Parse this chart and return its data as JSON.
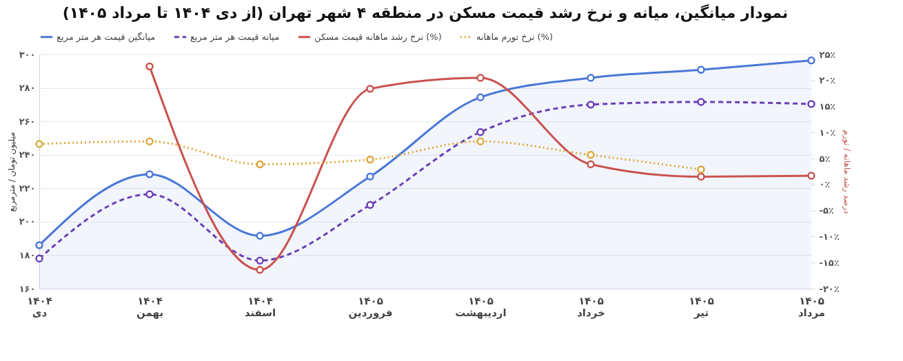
{
  "chart_data": {
    "type": "line",
    "title": "نمودار میانگین، میانه و نرخ رشد قیمت مسکن در منطقه ۴ شهر تهران (از دی ۱۴۰۴ تا مرداد ۱۴۰۵)",
    "ylabel": "میلیون تومان / مترمربع",
    "y2label": "درصد رشد ماهانه / تورم",
    "categories": [
      "۱۴۰۴\nدی",
      "۱۴۰۴\nبهمن",
      "۱۴۰۴\nاسفند",
      "۱۴۰۵\nفروردین",
      "۱۴۰۵\nاردیبهشت",
      "۱۴۰۵\nخرداد",
      "۱۴۰۵\nتیر",
      "۱۴۰۵\nمرداد"
    ],
    "series": [
      {
        "name": "میانگین قیمت هر متر مربع",
        "type": "area",
        "color": "#4a77d6",
        "line_style": "solid",
        "values": [
          186,
          228.4,
          191.6,
          227,
          274.4,
          286,
          290.8,
          296.4
        ]
      },
      {
        "name": "میانه قیمت هر متر مربع",
        "type": "line",
        "color": "#6a3fb5",
        "line_style": "dashed",
        "values": [
          178,
          216.4,
          176.8,
          210,
          253.6,
          270,
          271.6,
          270.4
        ]
      },
      {
        "name": "نرخ رشد ماهانه قیمت مسکن (%)",
        "type": "line",
        "axis": "y2",
        "color": "#c9524e",
        "line_style": "solid",
        "values": [
          null,
          22.7,
          -16.4,
          18.4,
          20.5,
          3.9,
          1.5,
          1.7
        ]
      },
      {
        "name": "نرخ تورم ماهانه (%)",
        "type": "line",
        "axis": "y2",
        "color": "#dba83a",
        "line_style": "dotted",
        "values": [
          7.8,
          8.3,
          3.9,
          4.8,
          8.3,
          5.7,
          2.9,
          null
        ]
      }
    ],
    "ylim": [
      160,
      300
    ],
    "yticks": [
      {
        "value": 160,
        "label": "۱۶۰"
      },
      {
        "value": 180,
        "label": "۱۸۰"
      },
      {
        "value": 200,
        "label": "۲۰۰"
      },
      {
        "value": 220,
        "label": "۲۲۰"
      },
      {
        "value": 240,
        "label": "۲۴۰"
      },
      {
        "value": 260,
        "label": "۲۶۰"
      },
      {
        "value": 280,
        "label": "۲۸۰"
      },
      {
        "value": 300,
        "label": "۳۰۰"
      }
    ],
    "y2lim": [
      -20,
      25
    ],
    "y2ticks": [
      {
        "value": -20,
        "label": "-۲۰٪"
      },
      {
        "value": -15,
        "label": "-۱۵٪"
      },
      {
        "value": -10,
        "label": "-۱۰٪"
      },
      {
        "value": -5,
        "label": "-۵٪"
      },
      {
        "value": 0,
        "label": "۰٪"
      },
      {
        "value": 5,
        "label": "۵٪"
      },
      {
        "value": 10,
        "label": "۱۰٪"
      },
      {
        "value": 15,
        "label": "۱۵٪"
      },
      {
        "value": 20,
        "label": "۲۰٪"
      },
      {
        "value": 25,
        "label": "۲۵٪"
      }
    ],
    "grid": "y",
    "legend": "top",
    "marker": "circle"
  }
}
